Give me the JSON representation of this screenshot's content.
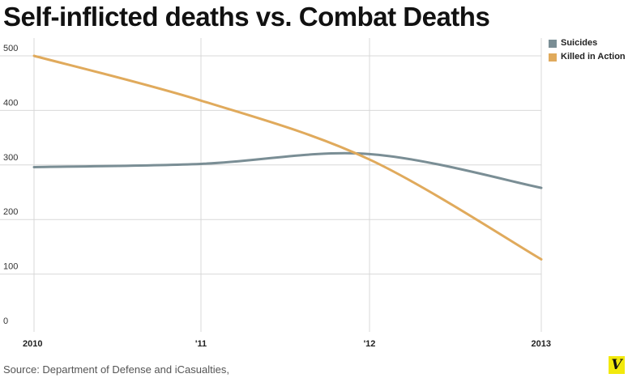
{
  "header": {
    "title": "Self-inflicted deaths vs. Combat Deaths"
  },
  "footer": {
    "source": "Source: Department of Defense and iCasualties,",
    "logo_letter": "V"
  },
  "colors": {
    "suicides": "#7a8e95",
    "killed": "#e0aa5c",
    "grid": "#d8d8d8",
    "logo_bg": "#f2e90c"
  },
  "chart_data": {
    "type": "line",
    "x": [
      "2010",
      "'11",
      "'12",
      "2013"
    ],
    "series": [
      {
        "name": "Suicides",
        "values": [
          296,
          302,
          320,
          258
        ],
        "color": "#7a8e95"
      },
      {
        "name": "Killed in Action",
        "values": [
          500,
          418,
          310,
          127
        ],
        "color": "#e0aa5c"
      }
    ],
    "yticks": [
      0,
      100,
      200,
      300,
      400,
      500
    ],
    "ylim": [
      0,
      500
    ],
    "grid": true,
    "legend": "top-right"
  }
}
